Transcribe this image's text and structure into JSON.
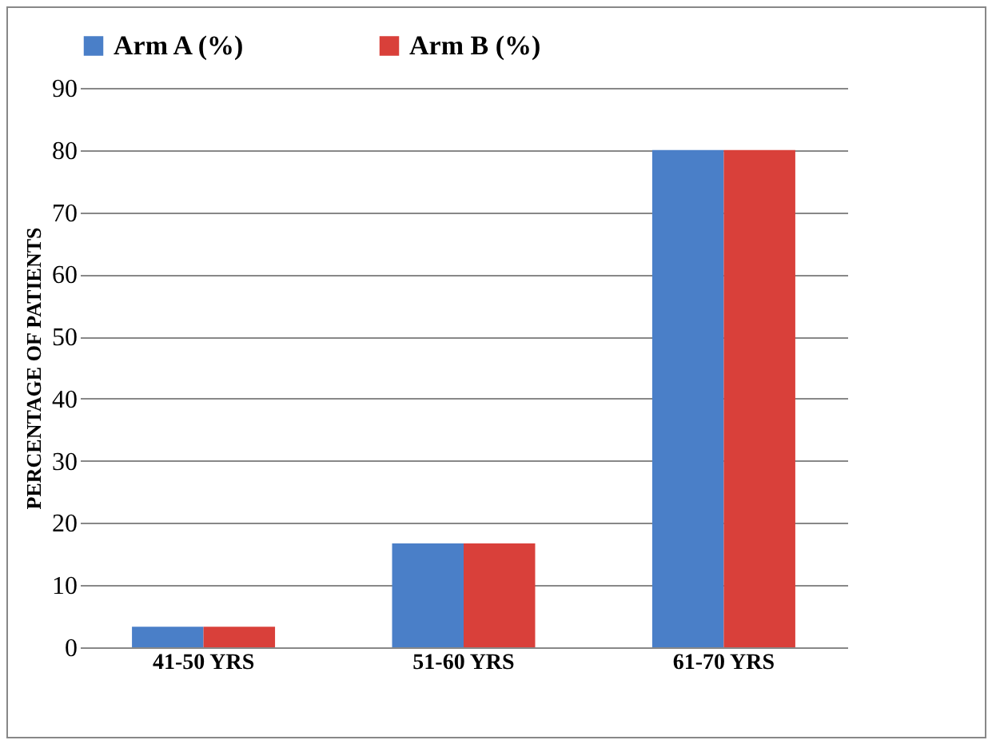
{
  "chart_data": {
    "type": "bar",
    "ylabel": "PERCENTAGE OF PATIENTS",
    "categories": [
      "41-50 YRS",
      "51-60 YRS",
      "61-70 YRS"
    ],
    "series": [
      {
        "name": "Arm A (%)",
        "color": "#4a7fc8",
        "values": [
          3.3,
          16.7,
          80
        ]
      },
      {
        "name": "Arm B (%)",
        "color": "#d9403a",
        "values": [
          3.3,
          16.7,
          80
        ]
      }
    ],
    "ylim": [
      0,
      90
    ],
    "yticks": [
      0,
      10,
      20,
      30,
      40,
      50,
      60,
      70,
      80,
      90
    ],
    "grid": "y",
    "legend": "top"
  }
}
